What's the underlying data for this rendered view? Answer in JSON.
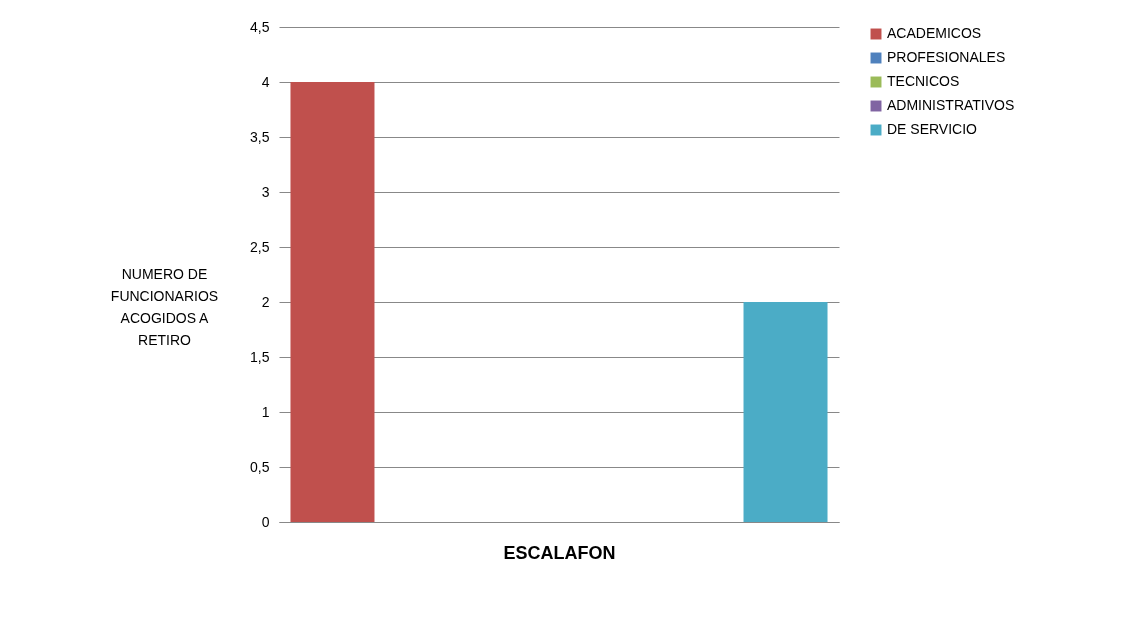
{
  "chart_data": {
    "type": "bar",
    "xlabel": "ESCALAFON",
    "ylabel": "NUMERO DE\nFUNCIONARIOS\nACOGIDOS A\nRETIRO",
    "categories": [
      null
    ],
    "series": [
      {
        "name": "ACADEMICOS",
        "color": "#c0504d",
        "values": [
          4
        ]
      },
      {
        "name": "PROFESIONALES",
        "color": "#4f81bd",
        "values": [
          0
        ]
      },
      {
        "name": "TECNICOS",
        "color": "#9bbb59",
        "values": [
          0
        ]
      },
      {
        "name": "ADMINISTRATIVOS",
        "color": "#8064a2",
        "values": [
          0
        ]
      },
      {
        "name": "DE SERVICIO",
        "color": "#4bacc6",
        "values": [
          2
        ]
      }
    ],
    "ylim": [
      0,
      4.5
    ],
    "yticks": [
      0,
      {
        "value": 0.5,
        "label": "0,5"
      },
      1,
      {
        "value": 1.5,
        "label": "1,5"
      },
      2,
      {
        "value": 2.5,
        "label": "2,5"
      },
      3,
      {
        "value": 3.5,
        "label": "3,5"
      },
      4,
      {
        "value": 4.5,
        "label": "4,5"
      }
    ],
    "grid": "y",
    "legend": "right"
  }
}
